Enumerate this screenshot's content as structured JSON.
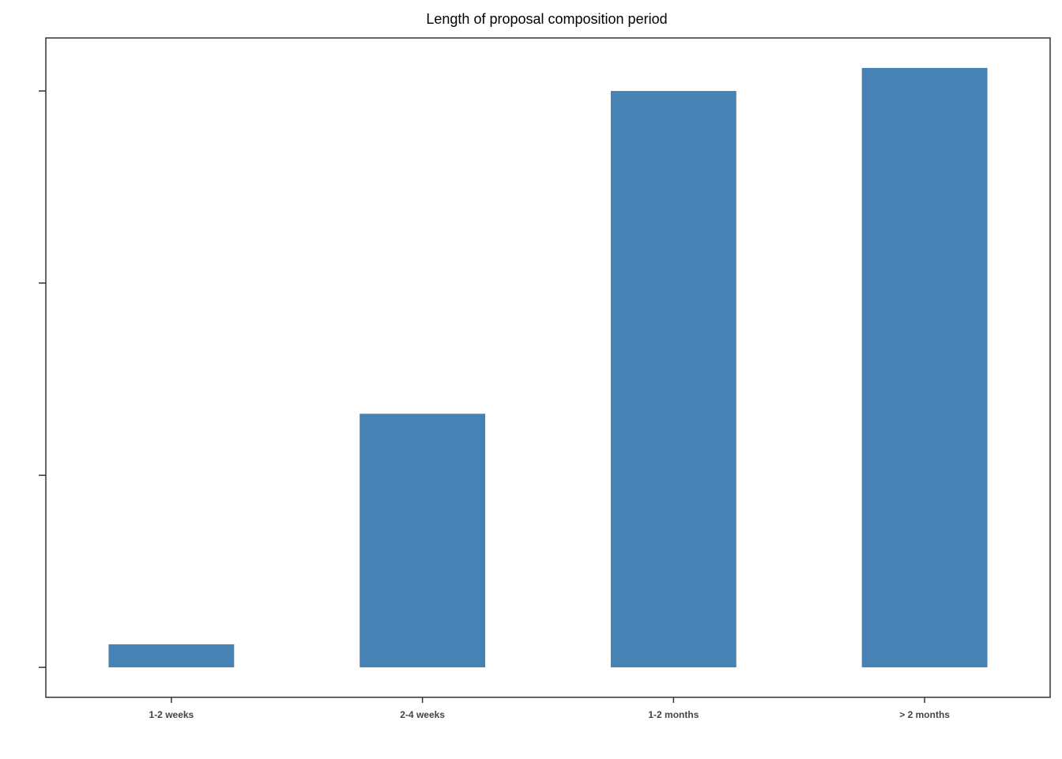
{
  "chart_data": {
    "type": "bar",
    "title": "Length of proposal composition period",
    "xlabel": "",
    "ylabel": "",
    "categories": [
      "1-2 weeks",
      "2-4 weeks",
      "1-2 months",
      "> 2 months"
    ],
    "values": [
      1,
      11,
      25,
      26
    ],
    "ylim": [
      -1.3,
      27.3
    ],
    "yticks": [
      0,
      8.33,
      16.67,
      25
    ],
    "ytick_labels_visible": false,
    "grid": false,
    "legend": "none",
    "bar_color": "#4682B4"
  }
}
